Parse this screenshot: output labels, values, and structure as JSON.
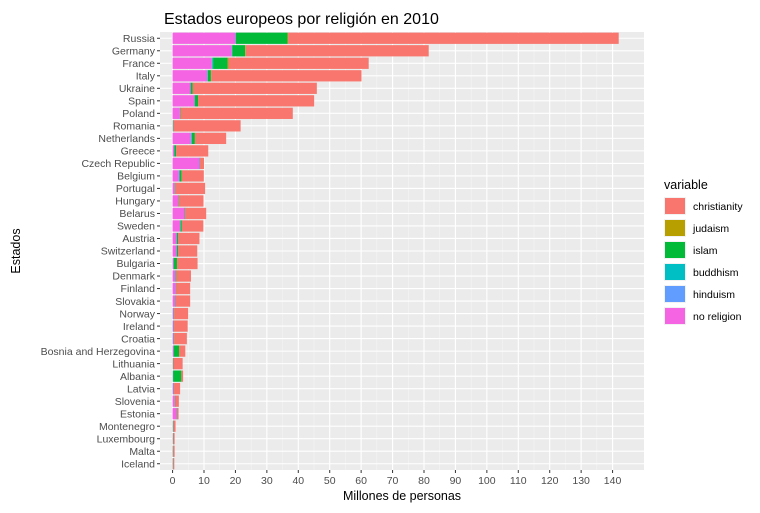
{
  "chart_data": {
    "type": "bar",
    "orientation": "horizontal",
    "stacked": true,
    "title": "Estados europeos por religión en 2010",
    "xlabel": "Millones de personas",
    "ylabel": "Estados",
    "xlim": [
      -4,
      150
    ],
    "xticks": [
      0,
      10,
      20,
      30,
      40,
      50,
      60,
      70,
      80,
      90,
      100,
      110,
      120,
      130,
      140
    ],
    "legend_title": "variable",
    "legend_position": "right",
    "grid": true,
    "categories": [
      "Russia",
      "Germany",
      "France",
      "Italy",
      "Ukraine",
      "Spain",
      "Poland",
      "Romania",
      "Netherlands",
      "Greece",
      "Czech Republic",
      "Belgium",
      "Portugal",
      "Hungary",
      "Belarus",
      "Sweden",
      "Austria",
      "Switzerland",
      "Bulgaria",
      "Denmark",
      "Finland",
      "Slovakia",
      "Norway",
      "Ireland",
      "Croatia",
      "Bosnia and Herzegovina",
      "Lithuania",
      "Albania",
      "Latvia",
      "Slovenia",
      "Estonia",
      "Montenegro",
      "Luxembourg",
      "Malta",
      "Iceland"
    ],
    "stack_order": [
      "no religion",
      "hinduism",
      "buddhism",
      "islam",
      "judaism",
      "christianity"
    ],
    "series": [
      {
        "name": "christianity",
        "color": "#F8766D",
        "values": [
          105.2,
          58.2,
          44.6,
          47.8,
          39.4,
          36.9,
          35.7,
          21.3,
          9.9,
          10.2,
          1.2,
          7.0,
          9.5,
          7.8,
          6.7,
          6.8,
          6.7,
          6.0,
          6.5,
          4.6,
          4.4,
          4.6,
          4.4,
          4.3,
          4.0,
          1.9,
          2.9,
          0.5,
          1.9,
          1.1,
          0.4,
          0.6,
          0.35,
          0.4,
          0.3
        ]
      },
      {
        "name": "judaism",
        "color": "#B79F00",
        "values": [
          0.2,
          0.2,
          0.3,
          0.1,
          0.1,
          0.05,
          0.05,
          0.05,
          0.05,
          0.05,
          0.05,
          0.1,
          0.05,
          0.1,
          0.05,
          0.05,
          0.05,
          0.05,
          0.05,
          0.05,
          0.05,
          0.05,
          0.05,
          0.05,
          0.05,
          0.05,
          0.05,
          0.05,
          0.05,
          0.05,
          0.05,
          0.05,
          0.05,
          0.05,
          0.05
        ]
      },
      {
        "name": "islam",
        "color": "#00BA38",
        "values": [
          16.4,
          4.1,
          4.6,
          1.0,
          0.6,
          1.0,
          0.1,
          0.1,
          1.0,
          0.5,
          0.05,
          0.6,
          0.05,
          0.05,
          0.05,
          0.4,
          0.4,
          0.4,
          1.0,
          0.2,
          0.05,
          0.05,
          0.1,
          0.05,
          0.1,
          1.7,
          0.05,
          2.6,
          0.05,
          0.05,
          0.05,
          0.1,
          0.05,
          0.05,
          0.05
        ]
      },
      {
        "name": "buddhism",
        "color": "#00BFC4",
        "values": [
          0.1,
          0.1,
          0.3,
          0.1,
          0.05,
          0.05,
          0.05,
          0.05,
          0.1,
          0.05,
          0.05,
          0.05,
          0.05,
          0.05,
          0.05,
          0.1,
          0.05,
          0.05,
          0.05,
          0.05,
          0.05,
          0.05,
          0.05,
          0.05,
          0.05,
          0.05,
          0.05,
          0.05,
          0.05,
          0.05,
          0.05,
          0.05,
          0.05,
          0.05,
          0.05
        ]
      },
      {
        "name": "hinduism",
        "color": "#619CFF",
        "values": [
          0.05,
          0.1,
          0.1,
          0.1,
          0.05,
          0.05,
          0.05,
          0.05,
          0.2,
          0.05,
          0.05,
          0.2,
          0.1,
          0.05,
          0.05,
          0.05,
          0.05,
          0.05,
          0.05,
          0.05,
          0.05,
          0.05,
          0.05,
          0.05,
          0.05,
          0.05,
          0.05,
          0.05,
          0.05,
          0.05,
          0.05,
          0.05,
          0.05,
          0.05,
          0.05
        ]
      },
      {
        "name": "no religion",
        "color": "#F564E3",
        "values": [
          20.0,
          18.8,
          12.5,
          11.0,
          5.7,
          7.0,
          2.3,
          0.1,
          5.8,
          0.5,
          8.6,
          2.0,
          0.6,
          1.8,
          3.8,
          2.4,
          1.3,
          1.3,
          0.3,
          0.9,
          1.0,
          0.8,
          0.3,
          0.3,
          0.3,
          0.3,
          0.1,
          0.1,
          0.3,
          0.7,
          1.3,
          0.1,
          0.1,
          0.05,
          0.05
        ]
      }
    ]
  }
}
